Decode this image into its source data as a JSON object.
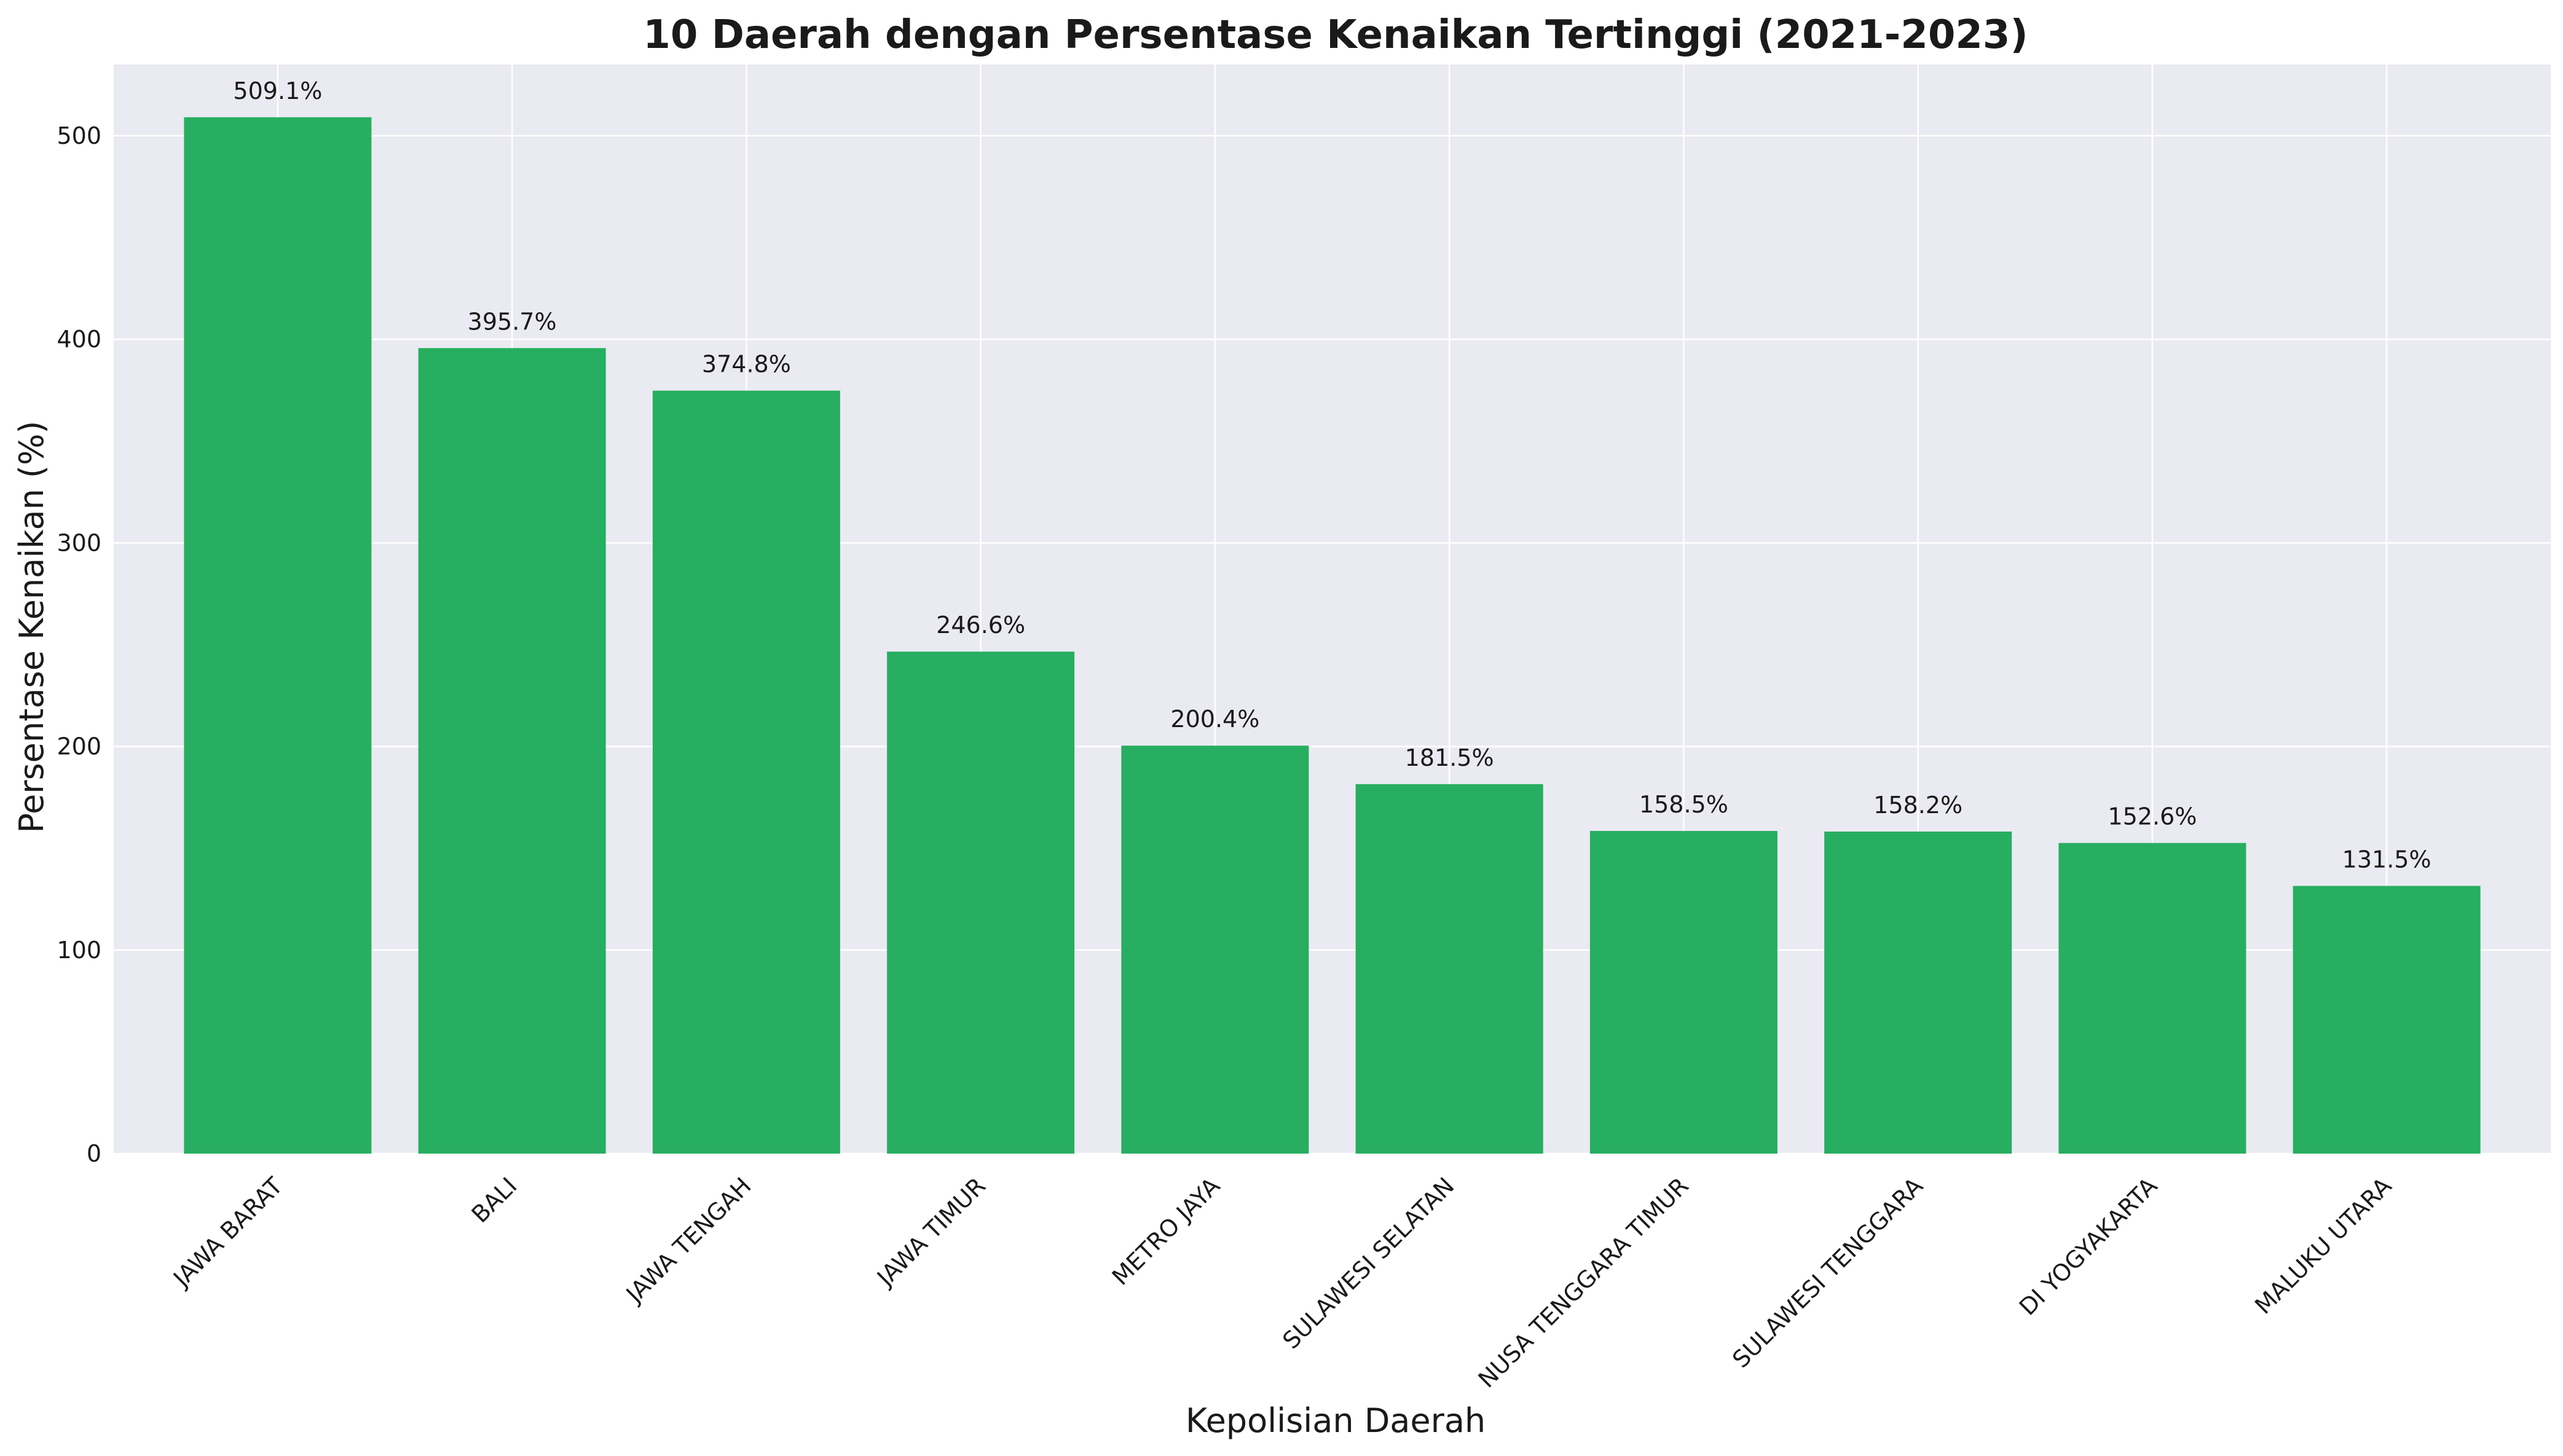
{
  "chart_data": {
    "type": "bar",
    "title": "10 Daerah dengan Persentase Kenaikan Tertinggi (2021-2023)",
    "xlabel": "Kepolisian Daerah",
    "ylabel": "Persentase Kenaikan (%)",
    "categories": [
      "JAWA BARAT",
      "BALI",
      "JAWA TENGAH",
      "JAWA TIMUR",
      "METRO JAYA",
      "SULAWESI SELATAN",
      "NUSA TENGGARA TIMUR",
      "SULAWESI TENGGARA",
      "DI YOGYAKARTA",
      "MALUKU UTARA"
    ],
    "values": [
      509.1,
      395.7,
      374.8,
      246.6,
      200.4,
      181.5,
      158.5,
      158.2,
      152.6,
      131.5
    ],
    "data_labels": [
      "509.1%",
      "395.7%",
      "374.8%",
      "246.6%",
      "200.4%",
      "181.5%",
      "158.5%",
      "158.2%",
      "152.6%",
      "131.5%"
    ],
    "ylim": [
      0,
      535
    ],
    "yticks": [
      0,
      100,
      200,
      300,
      400,
      500
    ],
    "grid": true,
    "bar_color": "#27ae60",
    "plot_background": "#eaeaf2",
    "grid_color": "#ffffff"
  }
}
